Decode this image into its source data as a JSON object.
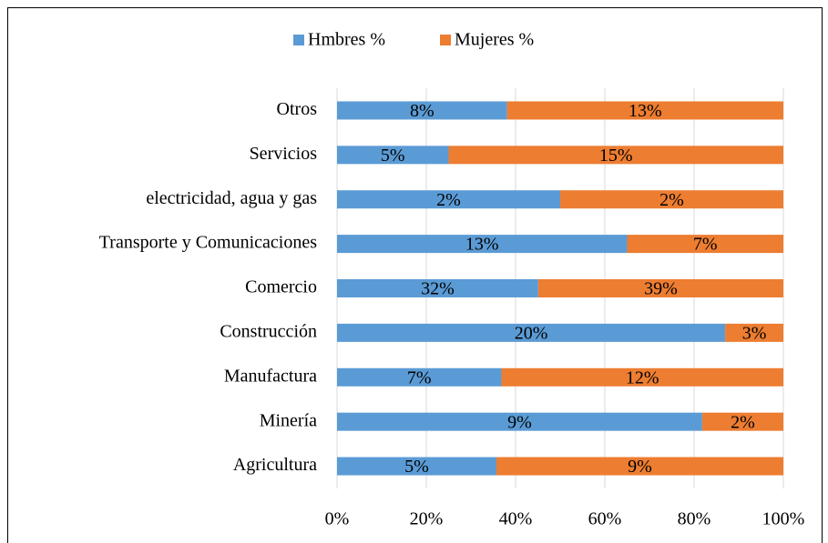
{
  "chart_data": {
    "type": "bar",
    "orientation": "horizontal",
    "stacking": "percent",
    "categories": [
      "Otros",
      "Servicios",
      "electricidad, agua y gas",
      "Transporte y Comunicaciones",
      "Comercio",
      "Construcción",
      "Manufactura",
      "Minería",
      "Agricultura"
    ],
    "series": [
      {
        "name": "Hmbres %",
        "color": "#5b9bd5",
        "values": [
          8,
          5,
          2,
          13,
          32,
          20,
          7,
          9,
          5
        ],
        "value_labels": [
          "8%",
          "5%",
          "2%",
          "13%",
          "32%",
          "20%",
          "7%",
          "9%",
          "5%"
        ]
      },
      {
        "name": "Mujeres %",
        "color": "#ed7d31",
        "values": [
          13,
          15,
          2,
          7,
          39,
          3,
          12,
          2,
          9
        ],
        "value_labels": [
          "13%",
          "15%",
          "2%",
          "7%",
          "39%",
          "3%",
          "12%",
          "2%",
          "9%"
        ]
      }
    ],
    "xlim": [
      0,
      100
    ],
    "xticks": [
      {
        "value": 0,
        "label": "0%"
      },
      {
        "value": 20,
        "label": "20%"
      },
      {
        "value": 40,
        "label": "40%"
      },
      {
        "value": 60,
        "label": "60%"
      },
      {
        "value": 80,
        "label": "80%"
      },
      {
        "value": 100,
        "label": "100%"
      }
    ],
    "grid": true,
    "legend": "top"
  }
}
